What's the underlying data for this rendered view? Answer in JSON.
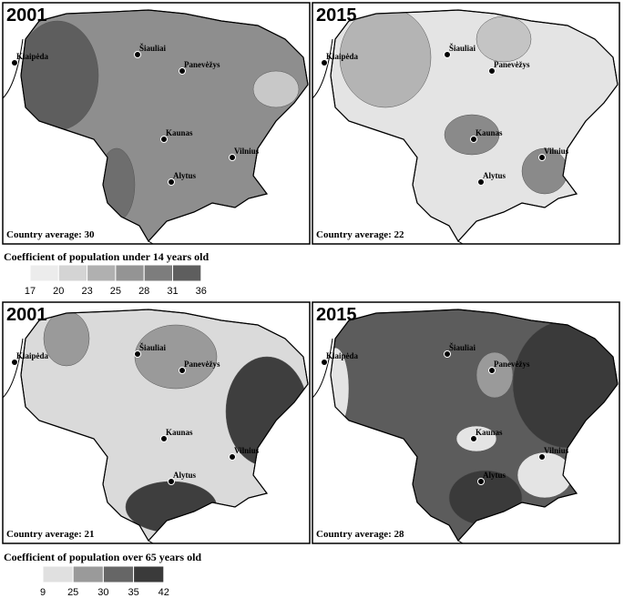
{
  "panels": [
    {
      "year": "2001",
      "average": "Country average: 30"
    },
    {
      "year": "2015",
      "average": "Country average: 22"
    },
    {
      "year": "2001",
      "average": "Country average: 21"
    },
    {
      "year": "2015",
      "average": "Country average: 28"
    }
  ],
  "cities": [
    "Klaipėda",
    "Šiauliai",
    "Panevėžys",
    "Kaunas",
    "Vilnius",
    "Alytus"
  ],
  "legends": [
    {
      "title": "Coefficient of population under 14 years old",
      "labels": [
        17,
        20,
        23,
        25,
        28,
        31,
        36
      ]
    },
    {
      "title": "Coefficient of population over 65 years old",
      "labels": [
        9,
        25,
        30,
        35,
        42
      ]
    }
  ]
}
